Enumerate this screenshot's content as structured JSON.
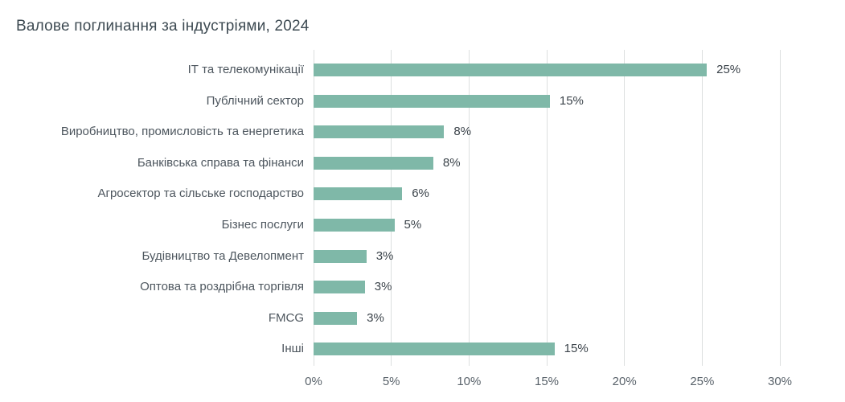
{
  "title": "Валове поглинання за індустріями, 2024",
  "chart_data": {
    "type": "bar",
    "orientation": "horizontal",
    "title": "Валове поглинання за індустріями, 2024",
    "categories": [
      "ІТ та телекомунікації",
      "Публічний сектор",
      "Виробництво, промисловість та енергетика",
      "Банківська справа та фінанси",
      "Агросектор та сільське господарство",
      "Бізнес послуги",
      "Будівництво та Девелопмент",
      "Оптова та роздрібна торгівля",
      "FMCG",
      "Інші"
    ],
    "values": [
      25,
      15,
      8,
      8,
      6,
      5,
      3,
      3,
      3,
      15
    ],
    "value_labels": [
      "25%",
      "15%",
      "8%",
      "8%",
      "6%",
      "5%",
      "3%",
      "3%",
      "3%",
      "15%"
    ],
    "bar_lengths_pct": [
      25.3,
      15.2,
      8.4,
      7.7,
      5.7,
      5.2,
      3.4,
      3.3,
      2.8,
      15.5
    ],
    "xlabel": "",
    "ylabel": "",
    "xlim": [
      0,
      30
    ],
    "x_tick_values": [
      0,
      5,
      10,
      15,
      20,
      25,
      30
    ],
    "x_tick_labels": [
      "0%",
      "5%",
      "10%",
      "15%",
      "20%",
      "25%",
      "30%"
    ],
    "grid": "vertical",
    "legend": "none",
    "colors": {
      "bar": "#7fb8a8",
      "gridline": "#dcdfdf",
      "title_text": "#3d4a52",
      "category_text": "#4d565e",
      "value_text": "#3c444b",
      "tick_text": "#5a636b",
      "background": "#ffffff"
    }
  }
}
